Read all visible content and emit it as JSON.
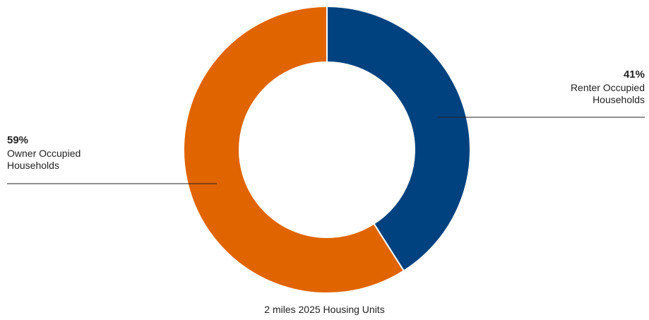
{
  "chart_data": {
    "type": "pie",
    "title": "2 miles 2025 Housing Units",
    "categories": [
      "Renter Occupied Households",
      "Owner Occupied Households"
    ],
    "values": [
      41,
      59
    ],
    "value_labels": [
      "41%",
      "59%"
    ],
    "colors": [
      "#00427f",
      "#e06400"
    ]
  }
}
